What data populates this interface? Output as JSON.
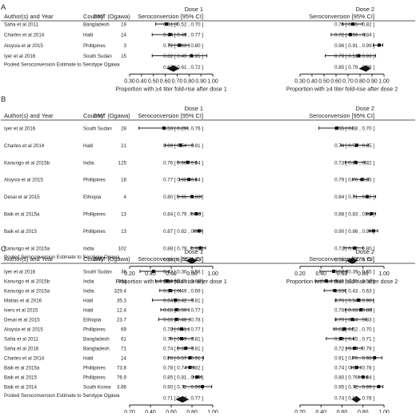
{
  "chart_data": [
    {
      "type": "forest",
      "panel_label": "A",
      "headers": {
        "author": "Author(s) and Year",
        "country": "Country",
        "gmt": "GMT (Ogawa)",
        "dose1": "Dose 1",
        "dose2": "Dose 2",
        "sero": "Seroconversion [95% CI]"
      },
      "studies": [
        {
          "author": "Saha et al 2011",
          "country": "Bangladesh",
          "gmt": "19",
          "d1": [
            0.61,
            0.52,
            0.7
          ],
          "d1_text": "0.61 [ 0.52 , 0.70 ]",
          "d2": [
            0.74,
            0.65,
            0.82
          ],
          "d2_text": "0.74 [ 0.65 , 0.82 ]"
        },
        {
          "author": "Charles et al 2014",
          "country": "Haiti",
          "gmt": "14",
          "d1": [
            0.64,
            0.49,
            0.77
          ],
          "d1_text": "0.64 [ 0.49 , 0.77 ]",
          "d2": [
            0.72,
            0.56,
            0.84
          ],
          "d2_text": "0.72 [ 0.56 , 0.84 ]"
        },
        {
          "author": "Aloysia et al 2015",
          "country": "Phillipines",
          "gmt": "3",
          "d1": [
            0.72,
            0.63,
            0.8
          ],
          "d1_text": "0.72 [ 0.63 , 0.80 ]",
          "d2": [
            0.96,
            0.91,
            0.99
          ],
          "d2_text": "0.96 [ 0.91 , 0.99 ]"
        },
        {
          "author": "Iyer et al 2016",
          "country": "South Sudan",
          "gmt": "15",
          "d1": [
            0.82,
            0.49,
            0.95
          ],
          "d1_text": "0.82 [ 0.49 , 0.95 ]",
          "d2": [
            0.79,
            0.51,
            0.93
          ],
          "d2_text": "0.79 [ 0.51 , 0.93 ]"
        }
      ],
      "pooled": {
        "label": "Pooled Seroconversion Estimate to Serotype Ogawa",
        "d1": [
          0.67,
          0.61,
          0.72
        ],
        "d1_text": "0.67 [ 0.61 , 0.72 ]",
        "d2": [
          0.85,
          0.79,
          0.89
        ],
        "d2_text": "0.85 [ 0.79 , 0.89 ]"
      },
      "dose1_axis": {
        "xlim": [
          0.3,
          1.0
        ],
        "ticks": [
          "0.30",
          "0.40",
          "0.50",
          "0.60",
          "0.70",
          "0.80",
          "0.90",
          "1.00"
        ],
        "xlabel": "Proportion with ≥4 titer fold-rise after dose 1"
      },
      "dose2_axis": {
        "xlim": [
          0.3,
          1.0
        ],
        "ticks": [
          "0.30",
          "0.40",
          "0.50",
          "0.60",
          "0.70",
          "0.80",
          "0.90",
          "1.00"
        ],
        "xlabel": "Proportion with ≥4 titer fold-rise after dose 2"
      }
    },
    {
      "type": "forest",
      "panel_label": "B",
      "headers": {
        "author": "Author(s) and Year",
        "country": "Country",
        "gmt": "GMT (Ogawa)",
        "dose1": "Dose 1",
        "dose2": "Dose 2",
        "sero": "Seroconversion [95% CI]"
      },
      "studies": [
        {
          "author": "Iyer et al 2016",
          "country": "South Sudan",
          "gmt": "28",
          "d1": [
            0.53,
            0.29,
            0.76
          ],
          "d1_text": "0.53 [ 0.29 , 0.76 ]",
          "d2": [
            0.55,
            0.38,
            0.7
          ],
          "d2_text": "0.55 [ 0.38 , 0.70 ]"
        },
        {
          "author": "Charles et al 2014",
          "country": "Haiti",
          "gmt": "21",
          "d1": [
            0.69,
            0.54,
            0.81
          ],
          "d1_text": "0.69 [ 0.54 , 0.81 ]",
          "d2": [
            0.74,
            0.59,
            0.85
          ],
          "d2_text": "0.74 [ 0.59 , 0.85 ]"
        },
        {
          "author": "Kanungo et al 2015b",
          "country": "India",
          "gmt": "125",
          "d1": [
            0.76,
            0.66,
            0.84
          ],
          "d1_text": "0.76 [ 0.66 , 0.84 ]",
          "d2": [
            0.73,
            0.63,
            0.82
          ],
          "d2_text": "0.73 [ 0.63 , 0.82 ]"
        },
        {
          "author": "Aloysia et al 2015",
          "country": "Phillipines",
          "gmt": "18",
          "d1": [
            0.77,
            0.68,
            0.84
          ],
          "d1_text": "0.77 [ 0.68 , 0.84 ]",
          "d2": [
            0.79,
            0.7,
            0.85
          ],
          "d2_text": "0.79 [ 0.70 , 0.85 ]"
        },
        {
          "author": "Desai et al 2015",
          "country": "Ethiopia",
          "gmt": "4",
          "d1": [
            0.8,
            0.66,
            0.89
          ],
          "d1_text": "0.80 [ 0.66 , 0.89 ]",
          "d2": [
            0.84,
            0.71,
            0.92
          ],
          "d2_text": "0.84 [ 0.71 , 0.92 ]"
        },
        {
          "author": "Baik et al 2015a",
          "country": "Phillipines",
          "gmt": "13",
          "d1": [
            0.84,
            0.79,
            0.88
          ],
          "d1_text": "0.84 [ 0.79 , 0.88 ]",
          "d2": [
            0.88,
            0.83,
            0.92
          ],
          "d2_text": "0.88 [ 0.83 , 0.92 ]"
        },
        {
          "author": "Baik et al 2015",
          "country": "Phillipines",
          "gmt": "13",
          "d1": [
            0.87,
            0.82,
            0.9
          ],
          "d1_text": "0.87 [ 0.82 , 0.90 ]",
          "d2": [
            0.9,
            0.86,
            0.94
          ],
          "d2_text": "0.90 [ 0.86 , 0.94 ]"
        },
        {
          "author": "Kanungo et al 2015a",
          "country": "India",
          "gmt": "102",
          "d1": [
            0.88,
            0.79,
            0.93
          ],
          "d1_text": "0.88 [ 0.79 , 0.93 ]",
          "d2": [
            0.72,
            0.62,
            0.8
          ],
          "d2_text": "0.72 [ 0.62 , 0.80 ]"
        }
      ],
      "pooled": {
        "label": "Pooled Seroconversion Estimate to Serotype Ogawa",
        "d1": [
          0.8,
          0.74,
          0.85
        ],
        "d1_text": "0.80 [ 0.74 , 0.85 ]",
        "d2": [
          0.7,
          0.64,
          0.75
        ],
        "d2_text": "0.70 [ 0.64 , 0.75 ]"
      },
      "dose1_axis": {
        "xlim": [
          0.2,
          1.0
        ],
        "ticks": [
          "0.20",
          "0.40",
          "0.60",
          "0.80",
          "1.00"
        ],
        "xlabel": "Proportion with ≥4 titer fold-rise after dose 1"
      },
      "dose2_axis": {
        "xlim": [
          0.2,
          1.0
        ],
        "ticks": [
          "0.20",
          "0.40",
          "0.60",
          "0.80",
          "1.00"
        ],
        "xlabel": "Proportion with ≥4 titer fold-rise after dose 2"
      }
    },
    {
      "type": "forest",
      "panel_label": "C",
      "headers": {
        "author": "Author(s) and Year",
        "country": "Country",
        "gmt": "GMT (Ogawa)",
        "dose1": "Dose 1",
        "dose2": "Dose 2",
        "sero": "Seroconversion [95% CI]"
      },
      "studies": [
        {
          "author": "Iyer et al 2016",
          "country": "South Sudan",
          "gmt": "36",
          "d1": [
            0.43,
            0.3,
            0.58
          ],
          "d1_text": "0.43 [ 0.30 , 0.58 ]",
          "d2": [
            0.52,
            0.39,
            0.65
          ],
          "d2_text": "0.52 [ 0.39 , 0.65 ]"
        },
        {
          "author": "Kanungo et al 2015b",
          "country": "India",
          "gmt": "364",
          "d1": [
            0.56,
            0.45,
            0.66
          ],
          "d1_text": "0.56 [ 0.45 , 0.66 ]",
          "d2": [
            0.45,
            0.35,
            0.56
          ],
          "d2_text": "0.45 [ 0.35 , 0.56 ]"
        },
        {
          "author": "Kanungo et al 2015a",
          "country": "India",
          "gmt": "329.4",
          "d1": [
            0.59,
            0.49,
            0.69
          ],
          "d1_text": "0.59 [ 0.49 , 0.69 ]",
          "d2": [
            0.53,
            0.43,
            0.63
          ],
          "d2_text": "0.53 [ 0.43 , 0.63 ]"
        },
        {
          "author": "Matias et al 2016",
          "country": "Haiti",
          "gmt": "35.3",
          "d1": [
            0.64,
            0.42,
            0.81
          ],
          "d1_text": "0.64 [ 0.42 , 0.81 ]",
          "d2": [
            0.76,
            0.54,
            0.9
          ],
          "d2_text": "0.76 [ 0.54 , 0.90 ]"
        },
        {
          "author": "Ivers et al 2015",
          "country": "Haiti",
          "gmt": "12.4",
          "d1": [
            0.65,
            0.5,
            0.77
          ],
          "d1_text": "0.65 [ 0.50 , 0.77 ]",
          "d2": [
            0.78,
            0.63,
            0.88
          ],
          "d2_text": "0.78 [ 0.63 , 0.88 ]"
        },
        {
          "author": "Desai et al 2015",
          "country": "Ethiopia",
          "gmt": "23.7",
          "d1": [
            0.65,
            0.48,
            0.78
          ],
          "d1_text": "0.65 [ 0.48 , 0.78 ]",
          "d2": [
            0.7,
            0.54,
            0.83
          ],
          "d2_text": "0.70 [ 0.54 , 0.83 ]"
        },
        {
          "author": "Aloysia et al 2015",
          "country": "Phillipines",
          "gmt": "69",
          "d1": [
            0.7,
            0.61,
            0.77
          ],
          "d1_text": "0.70 [ 0.61 , 0.77 ]",
          "d2": [
            0.62,
            0.52,
            0.7
          ],
          "d2_text": "0.62 [ 0.52 , 0.70 ]"
        },
        {
          "author": "Saha et al 2011",
          "country": "Bangladesh",
          "gmt": "61",
          "d1": [
            0.7,
            0.59,
            0.81
          ],
          "d1_text": "0.70 [ 0.59 , 0.81 ]",
          "d2": [
            0.59,
            0.45,
            0.71
          ],
          "d2_text": "0.59 [ 0.45 , 0.71 ]"
        },
        {
          "author": "Saha et al 2016",
          "country": "Bangladesh",
          "gmt": "71",
          "d1": [
            0.74,
            0.66,
            0.81
          ],
          "d1_text": "0.74 [ 0.66 , 0.81 ]",
          "d2": [
            0.72,
            0.64,
            0.79
          ],
          "d2_text": "0.72 [ 0.64 , 0.79 ]"
        },
        {
          "author": "Charles et al 2014",
          "country": "Haiti",
          "gmt": "14",
          "d1": [
            0.78,
            0.57,
            0.91
          ],
          "d1_text": "0.78 [ 0.57 , 0.91 ]",
          "d2": [
            0.91,
            0.7,
            0.98
          ],
          "d2_text": "0.91 [ 0.70 , 0.98 ]"
        },
        {
          "author": "Baik et al 2015a",
          "country": "Phillipines",
          "gmt": "73.8",
          "d1": [
            0.78,
            0.74,
            0.82
          ],
          "d1_text": "0.78 [ 0.74 , 0.82 ]",
          "d2": [
            0.74,
            0.69,
            0.78
          ],
          "d2_text": "0.74 [ 0.69 , 0.78 ]"
        },
        {
          "author": "Baik et al 2015",
          "country": "Phillipines",
          "gmt": "76.9",
          "d1": [
            0.85,
            0.81,
            0.89
          ],
          "d1_text": "0.85 [ 0.81 , 0.89 ]",
          "d2": [
            0.8,
            0.76,
            0.84
          ],
          "d2_text": "0.80 [ 0.76 , 0.84 ]"
        },
        {
          "author": "Baik et al 2014",
          "country": "South Korea",
          "gmt": "3.66",
          "d1": [
            0.9,
            0.72,
            0.99
          ],
          "d1_text": "0.90 [ 0.72 , 0.99 ]",
          "d2": [
            0.95,
            0.72,
            0.99
          ],
          "d2_text": "0.95 [ 0.72 , 0.99 ]"
        }
      ],
      "pooled": {
        "label": "Pooled Seroconversion Estimate to Serotype Ogawa",
        "d1": [
          0.71,
          0.64,
          0.77
        ],
        "d1_text": "0.71 [ 0.64 , 0.77 ]",
        "d2": [
          0.74,
          0.69,
          0.78
        ],
        "d2_text": "0.74 [ 0.69 , 0.78 ]"
      },
      "dose1_axis": {
        "xlim": [
          0.2,
          1.0
        ],
        "ticks": [
          "0.20",
          "0.40",
          "0.60",
          "0.80",
          "1.00"
        ],
        "xlabel": "Proportion with ≥4 titer fold-rise after dose 1"
      },
      "dose2_axis": {
        "xlim": [
          0.2,
          1.0
        ],
        "ticks": [
          "0.20",
          "0.40",
          "0.60",
          "0.80",
          "1.00"
        ],
        "xlabel": "Proportion with ≥4 titer fold-rise after dose 2"
      }
    }
  ]
}
